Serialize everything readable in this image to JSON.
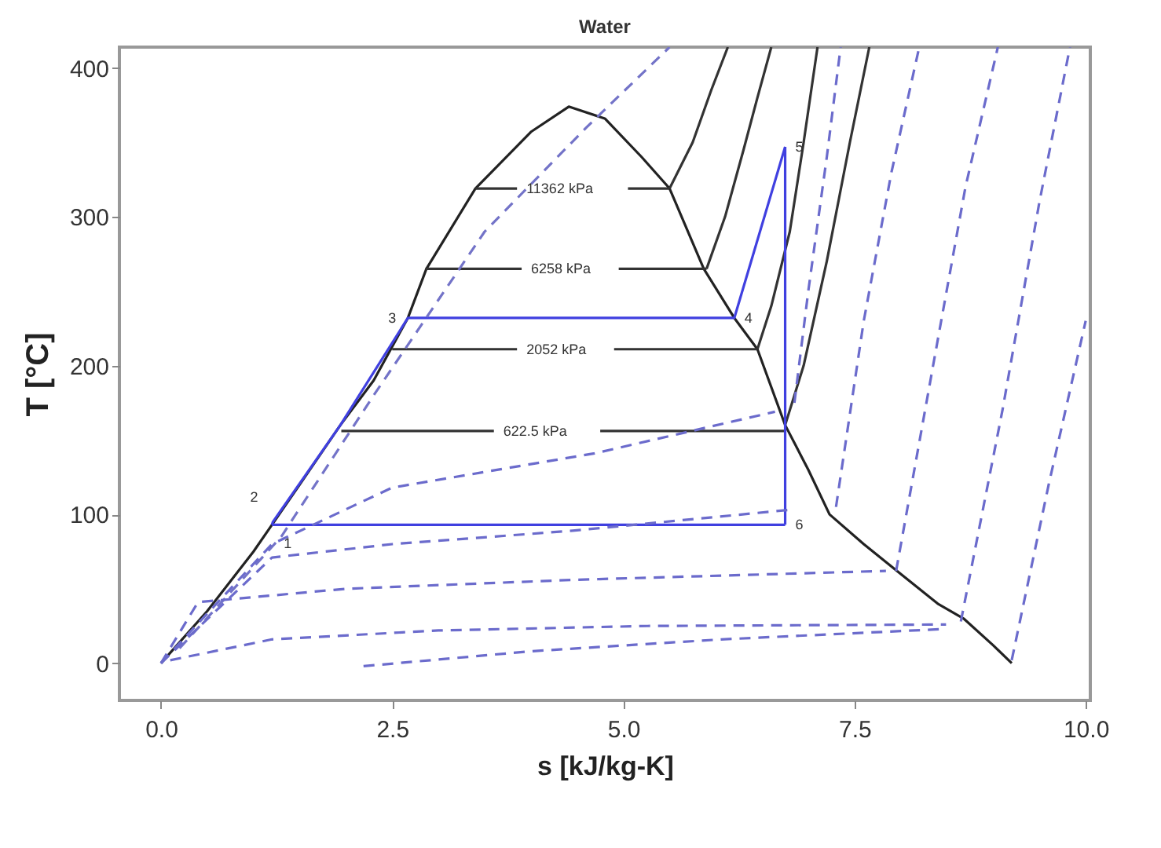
{
  "chart_data": {
    "type": "line",
    "title": "Water",
    "xlabel": "s [kJ/kg-K]",
    "ylabel": "T [°C]",
    "xlim": [
      -0.45,
      10.05
    ],
    "ylim": [
      -25,
      414
    ],
    "xticks": [
      {
        "value": 0,
        "label": "0.0"
      },
      {
        "value": 2.5,
        "label": "2.5"
      },
      {
        "value": 5,
        "label": "5.0"
      },
      {
        "value": 7.5,
        "label": "7.5"
      },
      {
        "value": 10,
        "label": "10.0"
      }
    ],
    "yticks": [
      0,
      100,
      200,
      300,
      400
    ],
    "grid": false,
    "legend": false,
    "series": [
      {
        "color": "#222222",
        "x": [
          0,
          0.5,
          1,
          1.2,
          1.5,
          1.94,
          2.3,
          2.67,
          2.87,
          3.4,
          4,
          4.41,
          4.8,
          5.2,
          5.5,
          5.87,
          6.2,
          6.45,
          6.75,
          7,
          7.23,
          7.6,
          8,
          8.4,
          8.68,
          9,
          9.2
        ],
        "values": [
          0,
          35,
          75,
          93,
          120,
          160,
          190,
          232,
          265,
          319,
          357,
          374,
          366,
          340,
          319,
          265,
          232,
          211,
          160,
          130,
          100,
          80,
          60,
          40,
          30,
          12,
          0
        ]
      },
      {
        "color": "#333333",
        "x": [
          3.4,
          3.85,
          4.45,
          5.05,
          5.5
        ],
        "values": [
          319,
          319,
          null,
          319,
          319
        ]
      },
      {
        "color": "#333333",
        "x": [
          2.86,
          3.9,
          4.4,
          4.95,
          5.9
        ],
        "values": [
          265,
          265,
          null,
          265,
          265
        ]
      },
      {
        "color": "#333333",
        "x": [
          2.5,
          3.85,
          4.37,
          4.9,
          6.45
        ],
        "values": [
          211,
          211,
          null,
          211,
          211
        ]
      },
      {
        "color": "#333333",
        "x": [
          1.95,
          3.6,
          4.16,
          4.75,
          6.75
        ],
        "values": [
          156,
          156,
          null,
          156,
          156
        ]
      },
      {
        "color": "#333333",
        "x": [
          5.5,
          5.75,
          5.95,
          6.13
        ],
        "values": [
          319,
          350,
          385,
          414
        ]
      },
      {
        "color": "#333333",
        "x": [
          5.9,
          6.1,
          6.3,
          6.45,
          6.6
        ],
        "values": [
          265,
          300,
          345,
          380,
          414
        ]
      },
      {
        "color": "#333333",
        "x": [
          6.45,
          6.6,
          6.8,
          6.95,
          7.1
        ],
        "values": [
          211,
          240,
          290,
          350,
          414
        ]
      },
      {
        "color": "#333333",
        "x": [
          6.75,
          6.95,
          7.2,
          7.45,
          7.66
        ],
        "values": [
          160,
          200,
          270,
          350,
          414
        ]
      },
      {
        "color": "#7373c8",
        "line_style": "dashed",
        "x": [
          0.2,
          1.3,
          2.3,
          3.5,
          4.6,
          5.5
        ],
        "values": [
          10,
          85,
          180,
          290,
          360,
          414
        ]
      },
      {
        "color": "#6b6bcc",
        "line_style": "dashed",
        "x": [
          0,
          1.2,
          2.5,
          4.69,
          6.64
        ],
        "values": [
          0,
          80,
          118,
          141,
          169
        ]
      },
      {
        "color": "#6b6bcc",
        "line_style": "dashed",
        "x": [
          0,
          1.2,
          2.5,
          4.45,
          6.79
        ],
        "values": [
          0,
          71,
          80,
          89,
          103
        ]
      },
      {
        "color": "#6b6bcc",
        "line_style": "dashed",
        "x": [
          0,
          0.4,
          2,
          4.45,
          7.84
        ],
        "values": [
          0,
          41,
          50,
          56,
          62
        ]
      },
      {
        "color": "#6b6bcc",
        "line_style": "dashed",
        "x": [
          0.1,
          1.2,
          3,
          5.26,
          8.49
        ],
        "values": [
          2,
          16,
          22,
          25,
          26
        ]
      },
      {
        "color": "#6b6bcc",
        "line_style": "dashed",
        "x": [
          2.19,
          4,
          6.06,
          8.49
        ],
        "values": [
          -2,
          8,
          16,
          23
        ]
      },
      {
        "color": "#6b6bcc",
        "line_style": "dashed",
        "x": [
          6.85,
          7,
          7.2,
          7.35
        ],
        "values": [
          175,
          250,
          340,
          414
        ]
      },
      {
        "color": "#6b6bcc",
        "line_style": "dashed",
        "x": [
          7.3,
          7.6,
          7.9,
          8.2
        ],
        "values": [
          105,
          230,
          330,
          414
        ]
      },
      {
        "color": "#6b6bcc",
        "line_style": "dashed",
        "x": [
          7.95,
          8.35,
          8.7,
          9.05
        ],
        "values": [
          62,
          200,
          320,
          414
        ]
      },
      {
        "color": "#6b6bcc",
        "line_style": "dashed",
        "x": [
          8.65,
          9.1,
          9.5,
          9.83
        ],
        "values": [
          28,
          170,
          310,
          414
        ]
      },
      {
        "color": "#6b6bcc",
        "line_style": "dashed",
        "x": [
          9.2,
          9.6,
          10
        ],
        "values": [
          2,
          120,
          230
        ]
      },
      {
        "color": "#4040e0",
        "x": [
          1.2,
          1.21,
          1.94,
          2.67,
          6.2,
          6.75
        ],
        "values": [
          93,
          95,
          160,
          232,
          232,
          347
        ]
      },
      {
        "color": "#4040e0",
        "x": [
          6.75,
          6.75
        ],
        "values": [
          347,
          93
        ]
      },
      {
        "color": "#4040e0",
        "x": [
          1.2,
          6.75
        ],
        "values": [
          93,
          93
        ]
      }
    ],
    "annotations": [
      {
        "text": "11362 kPa",
        "x": 3.85,
        "y": 319
      },
      {
        "text": "6258 kPa",
        "x": 3.9,
        "y": 265
      },
      {
        "text": "2052 kPa",
        "x": 3.85,
        "y": 211
      },
      {
        "text": "622.5 kPa",
        "x": 3.6,
        "y": 156
      },
      {
        "text": "1",
        "x": 1.2,
        "y": 93
      },
      {
        "text": "2",
        "x": 1.21,
        "y": 95
      },
      {
        "text": "3",
        "x": 2.67,
        "y": 232
      },
      {
        "text": "4",
        "x": 6.2,
        "y": 232
      },
      {
        "text": "5",
        "x": 6.75,
        "y": 347
      },
      {
        "text": "6",
        "x": 6.75,
        "y": 93
      }
    ]
  }
}
